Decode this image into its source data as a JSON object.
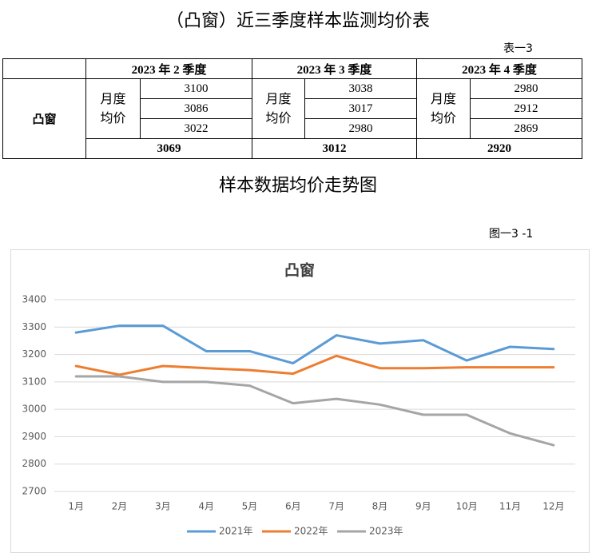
{
  "title": "（凸窗）近三季度样本监测均价表",
  "table_label": "表一3",
  "table": {
    "row_label": "凸窗",
    "sub_label": "月度均价",
    "quarters": [
      {
        "name": "2023 年 2 季度",
        "months": [
          3100,
          3086,
          3022
        ],
        "average": 3069
      },
      {
        "name": "2023 年 3 季度",
        "months": [
          3038,
          3017,
          2980
        ],
        "average": 3012
      },
      {
        "name": "2023 年 4 季度",
        "months": [
          2980,
          2912,
          2869
        ],
        "average": 2920
      }
    ]
  },
  "chart_heading": "样本数据均价走势图",
  "figure_label": "图一3 -1",
  "chart_data": {
    "type": "line",
    "title": "凸窗",
    "categories": [
      "1月",
      "2月",
      "3月",
      "4月",
      "5月",
      "6月",
      "7月",
      "8月",
      "9月",
      "10月",
      "11月",
      "12月"
    ],
    "series": [
      {
        "name": "2021年",
        "color": "#5b9bd5",
        "values": [
          3280,
          3305,
          3305,
          3212,
          3212,
          3168,
          3270,
          3240,
          3252,
          3178,
          3228,
          3220
        ]
      },
      {
        "name": "2022年",
        "color": "#ed7d31",
        "values": [
          3158,
          3126,
          3158,
          3150,
          3143,
          3130,
          3195,
          3150,
          3150,
          3153,
          3153,
          3153
        ]
      },
      {
        "name": "2023年",
        "color": "#a5a5a5",
        "values": [
          3120,
          3120,
          3100,
          3100,
          3086,
          3022,
          3038,
          3017,
          2980,
          2980,
          2912,
          2869
        ]
      }
    ],
    "ylim": [
      2700,
      3400
    ],
    "yticks": [
      2700,
      2800,
      2900,
      3000,
      3100,
      3200,
      3300,
      3400
    ],
    "grid": true,
    "legend": "bottom"
  }
}
